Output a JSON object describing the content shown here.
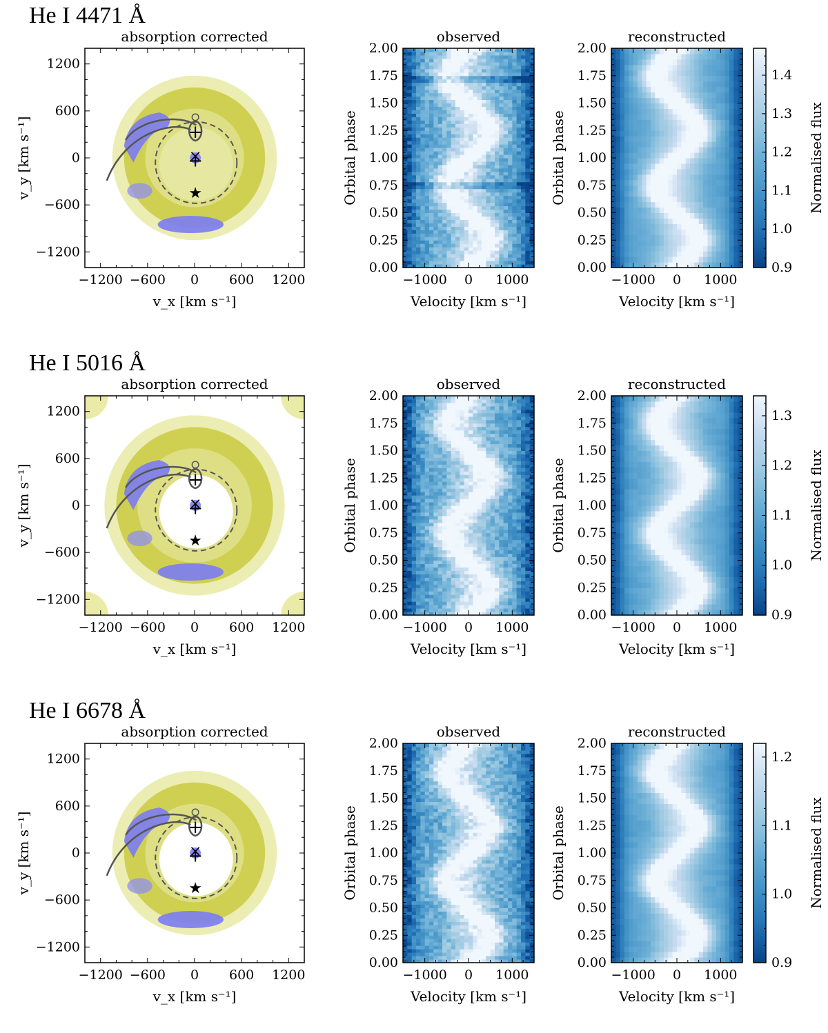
{
  "chart_data": [
    {
      "type": "heatmap",
      "line_title": "He I 4471 Å",
      "doppler_map": {
        "title": "absorption corrected",
        "xlabel": "v_x [km s⁻¹]",
        "ylabel": "v_y [km s⁻¹]",
        "xlim": [
          -1400,
          1400
        ],
        "ylim": [
          -1400,
          1400
        ],
        "ticks": [
          "−1200",
          "−600",
          "0",
          "600",
          "1200"
        ],
        "features": [
          "outer emission ring",
          "spiral arm upper-left",
          "lower arc -800 km/s"
        ]
      },
      "trailed_observed": {
        "title": "observed",
        "xlabel": "Velocity [km s⁻¹]",
        "ylabel": "Orbital phase",
        "xlim": [
          -1500,
          1500
        ],
        "ylim": [
          0.0,
          2.0
        ],
        "xticks": [
          "−1000",
          "0",
          "1000"
        ],
        "yticks": [
          "0.00",
          "0.25",
          "0.50",
          "0.75",
          "1.00",
          "1.25",
          "1.50",
          "1.75",
          "2.00"
        ]
      },
      "trailed_reconstructed": {
        "title": "reconstructed",
        "xlabel": "Velocity [km s⁻¹]",
        "ylabel": "Orbital phase",
        "xlim": [
          -1500,
          1500
        ],
        "ylim": [
          0.0,
          2.0
        ],
        "xticks": [
          "−1000",
          "0",
          "1000"
        ],
        "yticks": [
          "0.00",
          "0.25",
          "0.50",
          "0.75",
          "1.00",
          "1.25",
          "1.50",
          "1.75",
          "2.00"
        ]
      },
      "colorbar": {
        "label": "Normalised flux",
        "range": [
          0.9,
          1.47
        ],
        "ticks": [
          "0.9",
          "1.0",
          "1.1",
          "1.2",
          "1.3",
          "1.4"
        ]
      }
    },
    {
      "type": "heatmap",
      "line_title": "He I 5016 Å",
      "doppler_map": {
        "title": "absorption corrected",
        "xlabel": "v_x [km s⁻¹]",
        "ylabel": "v_y [km s⁻¹]",
        "xlim": [
          -1400,
          1400
        ],
        "ylim": [
          -1400,
          1400
        ],
        "ticks": [
          "−1200",
          "−600",
          "0",
          "600",
          "1200"
        ],
        "features": [
          "bright ring",
          "spiral arm upper-left",
          "lower arc -800 km/s"
        ]
      },
      "trailed_observed": {
        "title": "observed",
        "xlabel": "Velocity [km s⁻¹]",
        "ylabel": "Orbital phase",
        "xlim": [
          -1500,
          1500
        ],
        "ylim": [
          0.0,
          2.0
        ],
        "xticks": [
          "−1000",
          "0",
          "1000"
        ],
        "yticks": [
          "0.00",
          "0.25",
          "0.50",
          "0.75",
          "1.00",
          "1.25",
          "1.50",
          "1.75",
          "2.00"
        ]
      },
      "trailed_reconstructed": {
        "title": "reconstructed",
        "xlabel": "Velocity [km s⁻¹]",
        "ylabel": "Orbital phase",
        "xlim": [
          -1500,
          1500
        ],
        "ylim": [
          0.0,
          2.0
        ],
        "xticks": [
          "−1000",
          "0",
          "1000"
        ],
        "yticks": [
          "0.00",
          "0.25",
          "0.50",
          "0.75",
          "1.00",
          "1.25",
          "1.50",
          "1.75",
          "2.00"
        ]
      },
      "colorbar": {
        "label": "Normalised flux",
        "range": [
          0.9,
          1.34
        ],
        "ticks": [
          "0.9",
          "1.0",
          "1.1",
          "1.2",
          "1.3"
        ]
      }
    },
    {
      "type": "heatmap",
      "line_title": "He I 6678 Å",
      "doppler_map": {
        "title": "absorption corrected",
        "xlabel": "v_x [km s⁻¹]",
        "ylabel": "v_y [km s⁻¹]",
        "xlim": [
          -1400,
          1400
        ],
        "ylim": [
          -1400,
          1400
        ],
        "ticks": [
          "−1200",
          "−600",
          "0",
          "600",
          "1200"
        ],
        "features": [
          "emission ring",
          "spiral arm upper-left",
          "lower arc"
        ]
      },
      "trailed_observed": {
        "title": "observed",
        "xlabel": "Velocity [km s⁻¹]",
        "ylabel": "Orbital phase",
        "xlim": [
          -1500,
          1500
        ],
        "ylim": [
          0.0,
          2.0
        ],
        "xticks": [
          "−1000",
          "0",
          "1000"
        ],
        "yticks": [
          "0.00",
          "0.25",
          "0.50",
          "0.75",
          "1.00",
          "1.25",
          "1.50",
          "1.75",
          "2.00"
        ]
      },
      "trailed_reconstructed": {
        "title": "reconstructed",
        "xlabel": "Velocity [km s⁻¹]",
        "ylabel": "Orbital phase",
        "xlim": [
          -1500,
          1500
        ],
        "ylim": [
          0.0,
          2.0
        ],
        "xticks": [
          "−1000",
          "0",
          "1000"
        ],
        "yticks": [
          "0.00",
          "0.25",
          "0.50",
          "0.75",
          "1.00",
          "1.25",
          "1.50",
          "1.75",
          "2.00"
        ]
      },
      "colorbar": {
        "label": "Normalised flux",
        "range": [
          0.9,
          1.22
        ],
        "ticks": [
          "0.9",
          "1.0",
          "1.1",
          "1.2"
        ]
      }
    }
  ],
  "colors": {
    "map_yellow": "#c8c832",
    "map_blue": "#7b7bf2",
    "overlay_gray": "#555555",
    "cmap_dark": "#0b4d94",
    "cmap_light": "#f4f9fe"
  }
}
